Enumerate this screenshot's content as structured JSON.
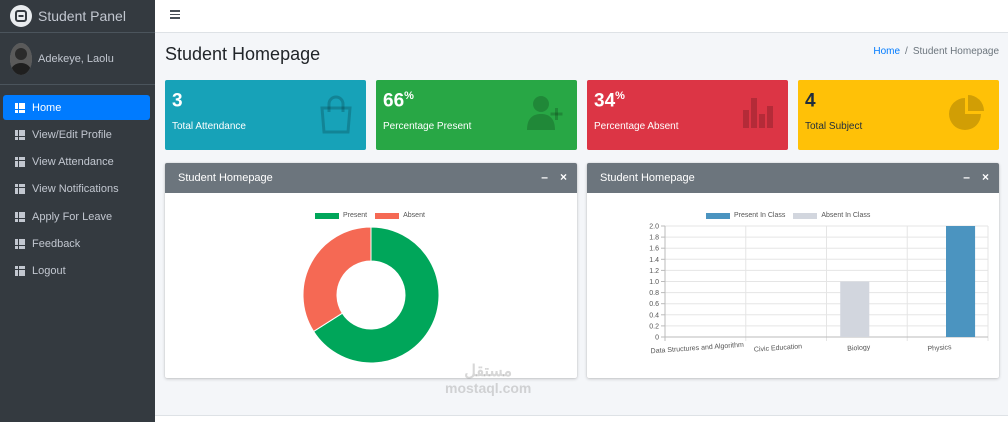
{
  "brand": {
    "title": "Student Panel"
  },
  "user": {
    "name": "Adekeye, Laolu"
  },
  "sidebar": {
    "items": [
      {
        "label": "Home",
        "active": true
      },
      {
        "label": "View/Edit Profile",
        "active": false
      },
      {
        "label": "View Attendance",
        "active": false
      },
      {
        "label": "View Notifications",
        "active": false
      },
      {
        "label": "Apply For Leave",
        "active": false
      },
      {
        "label": "Feedback",
        "active": false
      },
      {
        "label": "Logout",
        "active": false
      }
    ]
  },
  "page": {
    "title": "Student Homepage"
  },
  "breadcrumb": {
    "home": "Home",
    "separator": "/",
    "current": "Student Homepage"
  },
  "stats": [
    {
      "value": "3",
      "suffix": "",
      "label": "Total Attendance",
      "color": "#17a2b8",
      "icon": "shopping-bag-icon"
    },
    {
      "value": "66",
      "suffix": "%",
      "label": "Percentage Present",
      "color": "#28a745",
      "icon": "user-plus-icon"
    },
    {
      "value": "34",
      "suffix": "%",
      "label": "Percentage Absent",
      "color": "#dc3545",
      "icon": "bar-chart-icon"
    },
    {
      "value": "4",
      "suffix": "",
      "label": "Total Subject",
      "color": "#ffc107",
      "icon": "pie-chart-icon"
    }
  ],
  "cards": [
    {
      "title": "Student Homepage",
      "minimize": "–",
      "close": "×"
    },
    {
      "title": "Student Homepage",
      "minimize": "–",
      "close": "×"
    }
  ],
  "chart_data": [
    {
      "type": "pie",
      "variant": "doughnut",
      "categories": [
        "Present",
        "Absent"
      ],
      "values": [
        66,
        34
      ],
      "colors": [
        "#00a65a",
        "#f56954"
      ],
      "legend": "top"
    },
    {
      "type": "bar",
      "categories": [
        "Data Structures and Algorithm",
        "Civic Education",
        "Biology",
        "Physics"
      ],
      "series": [
        {
          "name": "Present In Class",
          "values": [
            0,
            0,
            0,
            2
          ],
          "color": "#4b94c0"
        },
        {
          "name": "Absent In Class",
          "values": [
            0,
            0,
            1,
            0
          ],
          "color": "#d2d6de"
        }
      ],
      "ylim": [
        0,
        2.0
      ],
      "yticks": [
        "0",
        "0.2",
        "0.4",
        "0.6",
        "0.8",
        "1.0",
        "1.2",
        "1.4",
        "1.6",
        "1.8",
        "2.0"
      ],
      "grid": true,
      "legend": "top"
    }
  ],
  "watermark": {
    "line1": "مستقل",
    "line2": "mostaql.com"
  }
}
